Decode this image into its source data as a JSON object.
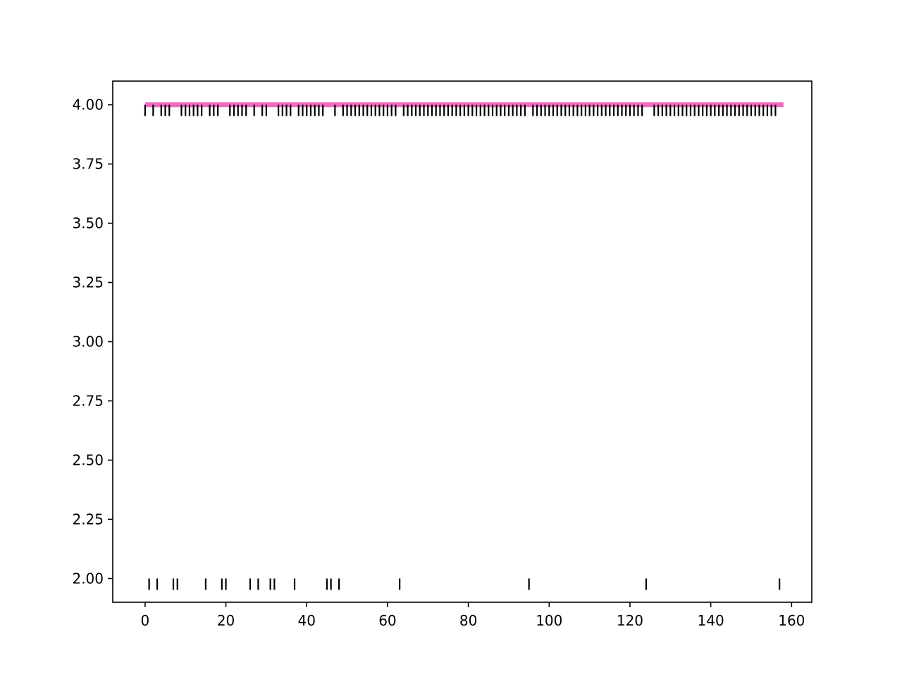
{
  "chart_data": {
    "type": "scatter",
    "title": "",
    "xlabel": "",
    "ylabel": "",
    "xlim": [
      -8,
      165
    ],
    "ylim": [
      1.9,
      4.1
    ],
    "grid": false,
    "xticks": [
      0,
      20,
      40,
      60,
      80,
      100,
      120,
      140,
      160
    ],
    "xtick_labels": [
      "0",
      "20",
      "40",
      "60",
      "80",
      "100",
      "120",
      "140",
      "160"
    ],
    "yticks": [
      2.0,
      2.25,
      2.5,
      2.75,
      3.0,
      3.25,
      3.5,
      3.75,
      4.0
    ],
    "ytick_labels": [
      "2.00",
      "2.25",
      "2.50",
      "2.75",
      "3.00",
      "3.25",
      "3.50",
      "3.75",
      "4.00"
    ],
    "line": {
      "x": [
        0,
        158
      ],
      "y": [
        4,
        4
      ],
      "color": "#f06bbf"
    },
    "marker_color": "#000000",
    "series": [
      {
        "y": 4,
        "x": [
          0,
          2,
          4,
          5,
          6,
          9,
          10,
          11,
          12,
          13,
          14,
          16,
          17,
          18,
          21,
          22,
          23,
          24,
          25,
          27,
          29,
          30,
          33,
          34,
          35,
          36,
          38,
          39,
          40,
          41,
          42,
          43,
          44,
          47,
          49,
          50,
          51,
          52,
          53,
          54,
          55,
          56,
          57,
          58,
          59,
          60,
          61,
          62,
          64,
          65,
          66,
          67,
          68,
          69,
          70,
          71,
          72,
          73,
          74,
          75,
          76,
          77,
          78,
          79,
          80,
          81,
          82,
          83,
          84,
          85,
          86,
          87,
          88,
          89,
          90,
          91,
          92,
          93,
          94,
          96,
          97,
          98,
          99,
          100,
          101,
          102,
          103,
          104,
          105,
          106,
          107,
          108,
          109,
          110,
          111,
          112,
          113,
          114,
          115,
          116,
          117,
          118,
          119,
          120,
          121,
          122,
          123,
          126,
          127,
          128,
          129,
          130,
          131,
          132,
          133,
          134,
          135,
          136,
          137,
          138,
          139,
          140,
          141,
          142,
          143,
          144,
          145,
          146,
          147,
          148,
          149,
          150,
          151,
          152,
          153,
          154,
          155,
          156
        ]
      },
      {
        "y": 2,
        "x": [
          1,
          3,
          7,
          8,
          15,
          19,
          20,
          26,
          28,
          31,
          32,
          37,
          45,
          46,
          48,
          63,
          95,
          124,
          157
        ]
      }
    ]
  }
}
